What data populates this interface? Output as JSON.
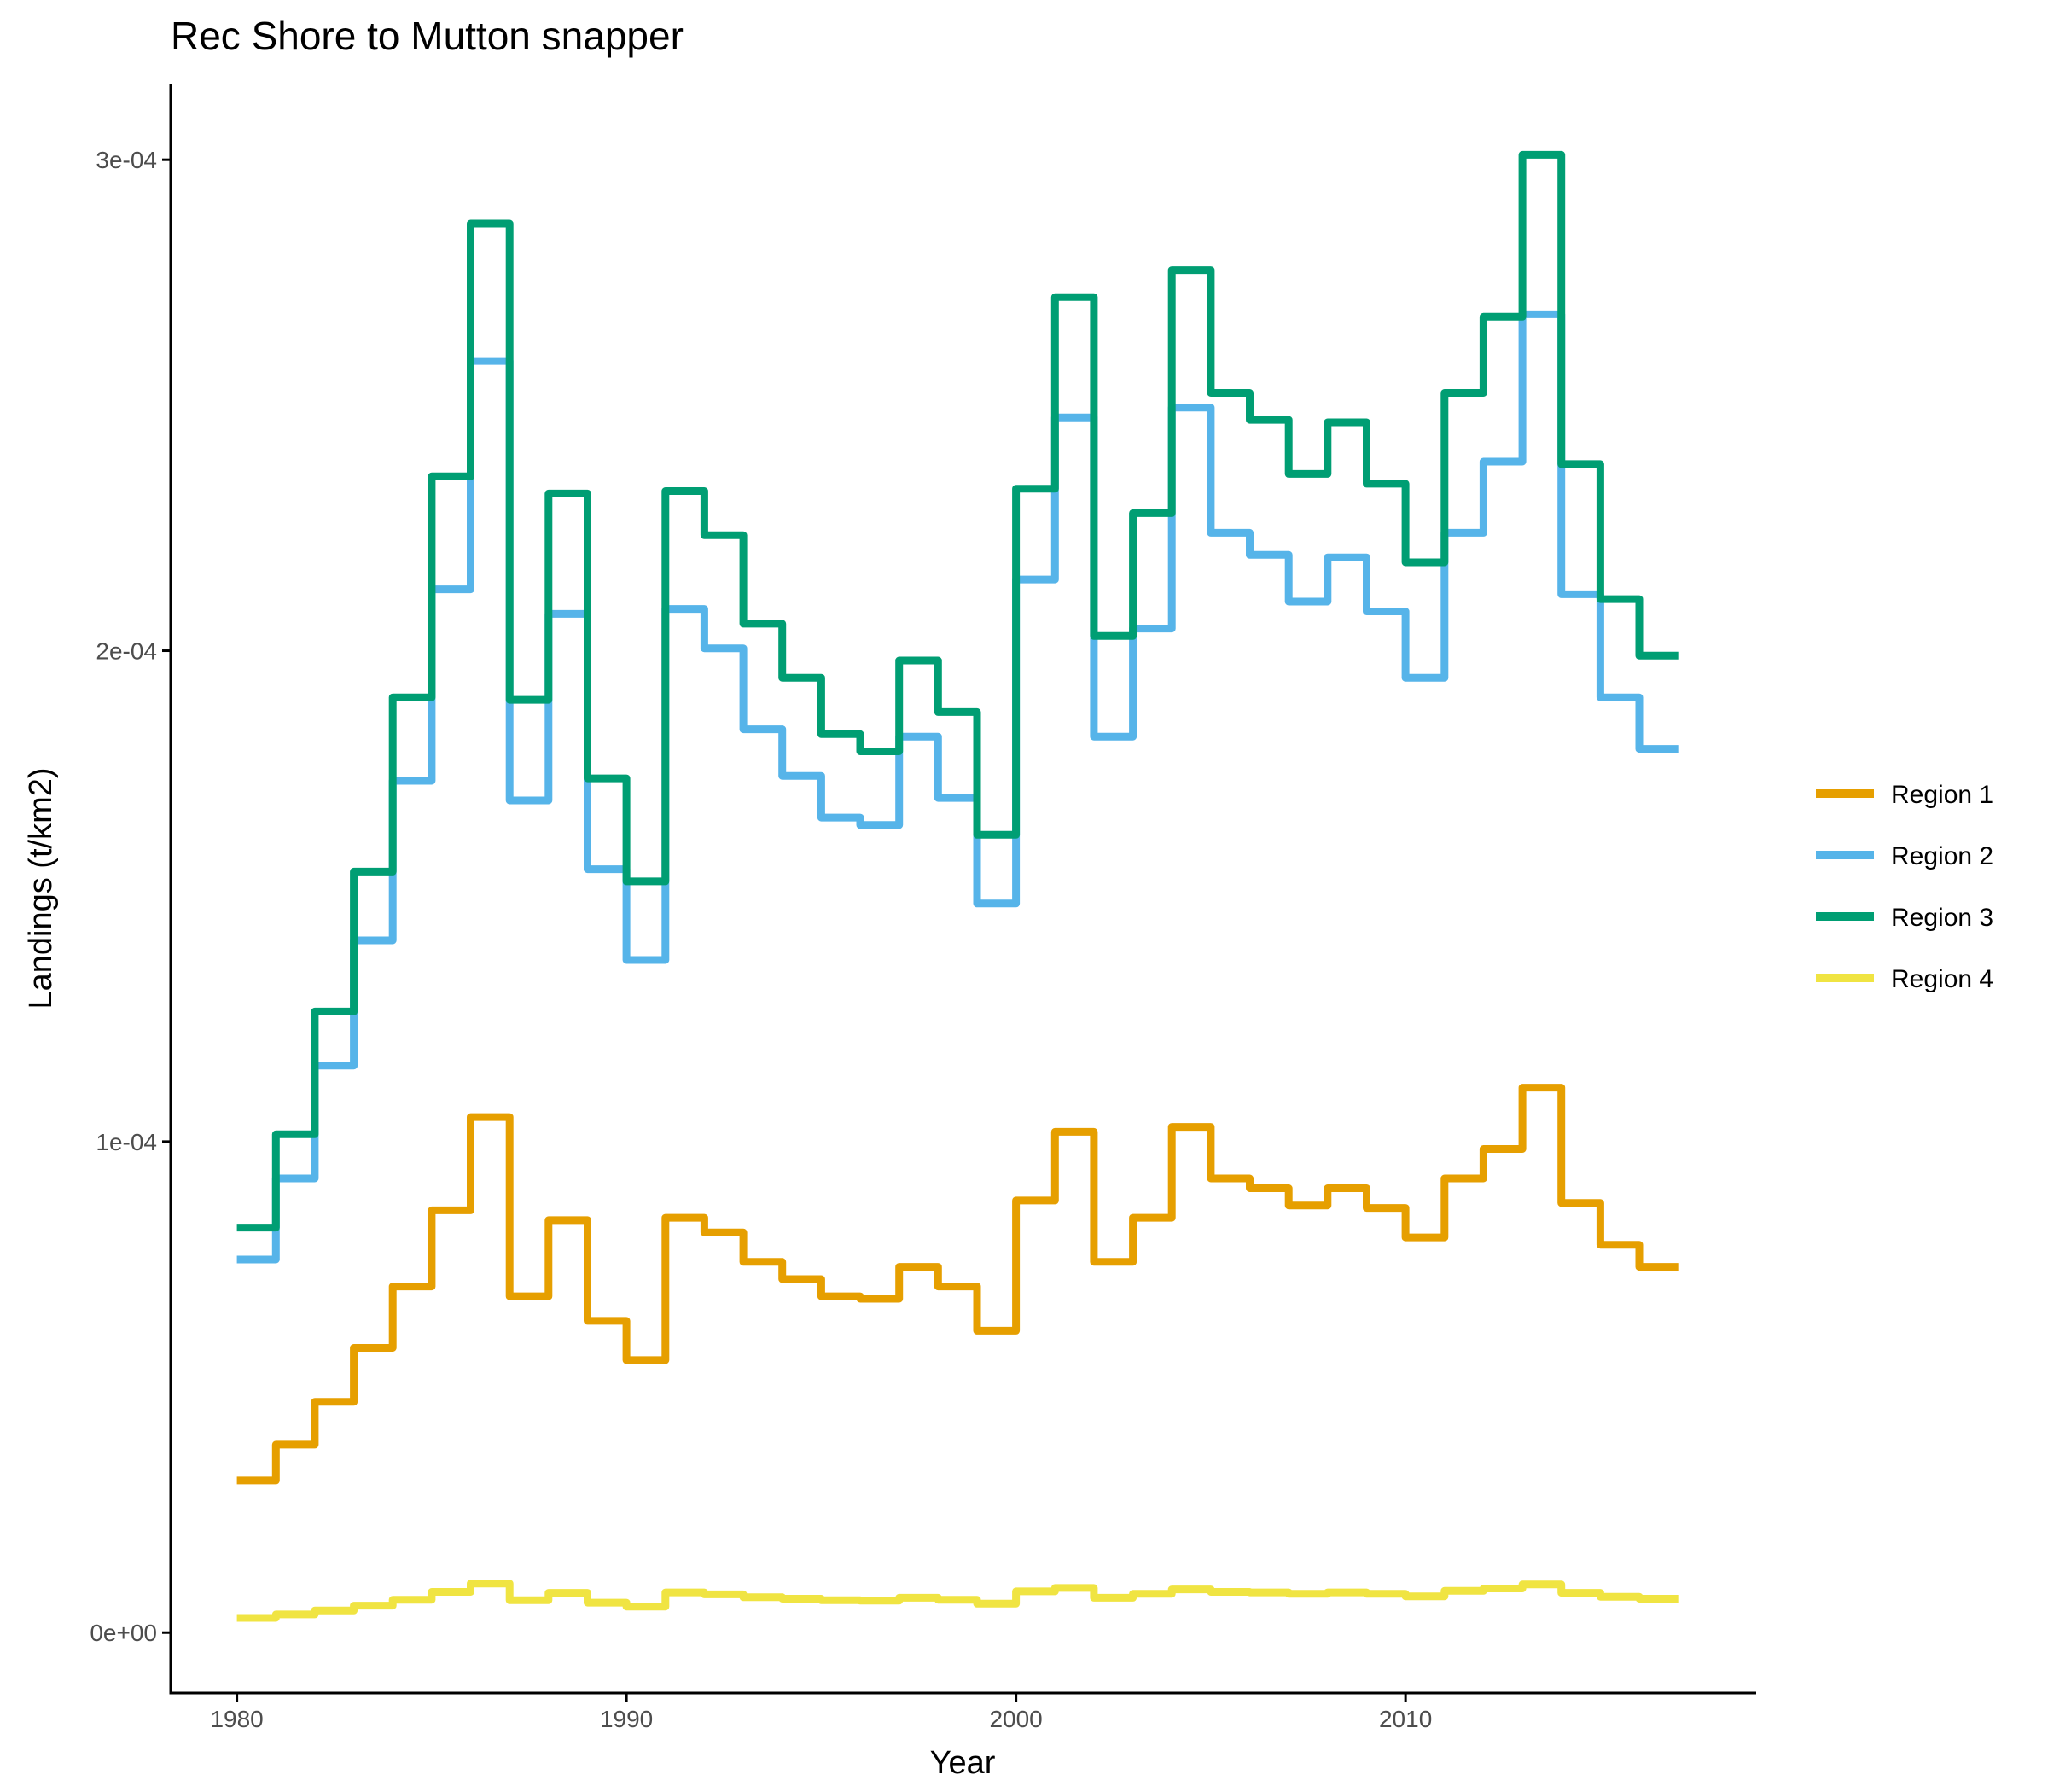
{
  "chart_data": {
    "type": "line",
    "step": true,
    "title": "Rec Shore to Mutton snapper",
    "xlabel": "Year",
    "ylabel": "Landings (t/km2)",
    "xlim": [
      1978.3,
      2019.0
    ],
    "ylim": [
      -1.23e-05,
      0.0003155
    ],
    "x_ticks": [
      1980,
      1990,
      2000,
      2010
    ],
    "y_ticks": [
      0,
      0.0001,
      0.0002,
      0.0003
    ],
    "y_tick_labels": [
      "0e+00",
      "1e-04",
      "2e-04",
      "3e-04"
    ],
    "grid": false,
    "legend_position": "right",
    "x": [
      1980,
      1981,
      1982,
      1983,
      1984,
      1985,
      1986,
      1987,
      1988,
      1989,
      1990,
      1991,
      1992,
      1993,
      1994,
      1995,
      1996,
      1997,
      1998,
      1999,
      2000,
      2001,
      2002,
      2003,
      2004,
      2005,
      2006,
      2007,
      2008,
      2009,
      2010,
      2011,
      2012,
      2013,
      2014,
      2015,
      2016
    ],
    "series": [
      {
        "name": "Region 1",
        "color": "#E69F00",
        "values": [
          3.1e-05,
          3.83e-05,
          4.7e-05,
          5.8e-05,
          7.05e-05,
          8.6e-05,
          0.000105,
          6.85e-05,
          8.4e-05,
          6.35e-05,
          5.55e-05,
          8.45e-05,
          8.15e-05,
          7.55e-05,
          7.2e-05,
          6.85e-05,
          6.8e-05,
          7.45e-05,
          7.05e-05,
          6.15e-05,
          8.8e-05,
          0.000102,
          7.55e-05,
          8.45e-05,
          0.000103,
          9.25e-05,
          9.05e-05,
          8.7e-05,
          9.05e-05,
          8.65e-05,
          8.05e-05,
          9.25e-05,
          9.85e-05,
          0.000111,
          8.75e-05,
          7.9e-05,
          7.45e-05
        ]
      },
      {
        "name": "Region 2",
        "color": "#56B4E9",
        "values": [
          7.6e-05,
          9.25e-05,
          0.0001155,
          0.000141,
          0.0001735,
          0.0002125,
          0.000259,
          0.0001695,
          0.0002075,
          0.0001555,
          0.000137,
          0.0002085,
          0.0002005,
          0.000184,
          0.0001745,
          0.000166,
          0.0001645,
          0.0001825,
          0.00017,
          0.0001485,
          0.0002145,
          0.0002475,
          0.0001825,
          0.0002045,
          0.0002495,
          0.000224,
          0.0002195,
          0.00021,
          0.000219,
          0.000208,
          0.0001945,
          0.000224,
          0.0002385,
          0.0002685,
          0.0002115,
          0.0001905,
          0.00018
        ]
      },
      {
        "name": "Region 3",
        "color": "#009E73",
        "values": [
          8.25e-05,
          0.0001015,
          0.0001265,
          0.000155,
          0.0001905,
          0.0002355,
          0.000287,
          0.00019,
          0.000232,
          0.000174,
          0.000153,
          0.0002325,
          0.0002235,
          0.0002055,
          0.0001945,
          0.000183,
          0.0001795,
          0.000198,
          0.0001875,
          0.0001625,
          0.000233,
          0.000272,
          0.000203,
          0.000228,
          0.0002775,
          0.0002525,
          0.000247,
          0.000236,
          0.0002465,
          0.000234,
          0.000218,
          0.0002525,
          0.000268,
          0.000301,
          0.000238,
          0.0002105,
          0.000199
        ]
      },
      {
        "name": "Region 4",
        "color": "#F0E442",
        "values": [
          3e-06,
          3.7e-06,
          4.5e-06,
          5.5e-06,
          6.7e-06,
          8.3e-06,
          1e-05,
          6.6e-06,
          8.1e-06,
          6.1e-06,
          5.3e-06,
          8.2e-06,
          7.8e-06,
          7.2e-06,
          6.9e-06,
          6.6e-06,
          6.5e-06,
          7.1e-06,
          6.7e-06,
          5.9e-06,
          8.4e-06,
          9.1e-06,
          7.1e-06,
          7.9e-06,
          8.8e-06,
          8.3e-06,
          8.2e-06,
          7.9e-06,
          8.2e-06,
          7.9e-06,
          7.4e-06,
          8.5e-06,
          9e-06,
          9.8e-06,
          8.1e-06,
          7.3e-06,
          6.9e-06
        ]
      }
    ]
  }
}
